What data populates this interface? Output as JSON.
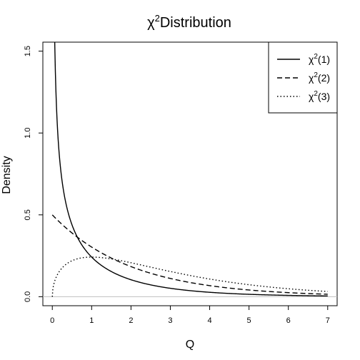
{
  "chart_data": {
    "type": "line",
    "title": {
      "symbol": "χ",
      "superscript": "2",
      "text": "Distribution"
    },
    "xlabel": "Q",
    "ylabel": "Density",
    "xlim": [
      -0.24,
      7.24
    ],
    "ylim": [
      -0.055,
      1.555
    ],
    "x_ticks": [
      0,
      1,
      2,
      3,
      4,
      5,
      6,
      7
    ],
    "y_ticks": [
      0.0,
      0.5,
      1.0,
      1.5
    ],
    "x_tick_labels": [
      "0",
      "1",
      "2",
      "3",
      "4",
      "5",
      "6",
      "7"
    ],
    "y_tick_labels": [
      "0.0",
      "0.5",
      "1.0",
      "1.5"
    ],
    "baseline": 0,
    "baseline_color": "#bfbfbf",
    "legend_position": "top-right",
    "series": [
      {
        "name": "(1)",
        "df": 1,
        "dash": "solid",
        "x": [
          0.05,
          0.1,
          0.2,
          0.3,
          0.5,
          0.75,
          1,
          1.5,
          2,
          3,
          4,
          5,
          6,
          7
        ],
        "values": [
          1.73,
          1.2,
          0.81,
          0.63,
          0.44,
          0.31,
          0.24,
          0.15,
          0.1,
          0.05,
          0.03,
          0.015,
          0.01,
          0.005
        ]
      },
      {
        "name": "(2)",
        "df": 2,
        "dash": "dashed",
        "x": [
          0,
          0.5,
          1,
          1.5,
          2,
          3,
          4,
          5,
          6,
          7
        ],
        "values": [
          0.5,
          0.39,
          0.3,
          0.24,
          0.18,
          0.11,
          0.07,
          0.04,
          0.025,
          0.015
        ]
      },
      {
        "name": "(3)",
        "df": 3,
        "dash": "dotted",
        "x": [
          0,
          0.1,
          0.25,
          0.5,
          1,
          1.5,
          2,
          3,
          4,
          5,
          6,
          7
        ],
        "values": [
          0,
          0.12,
          0.18,
          0.22,
          0.24,
          0.23,
          0.21,
          0.15,
          0.11,
          0.07,
          0.05,
          0.03
        ]
      }
    ],
    "legend_symbol": "χ",
    "legend_superscript": "2"
  }
}
